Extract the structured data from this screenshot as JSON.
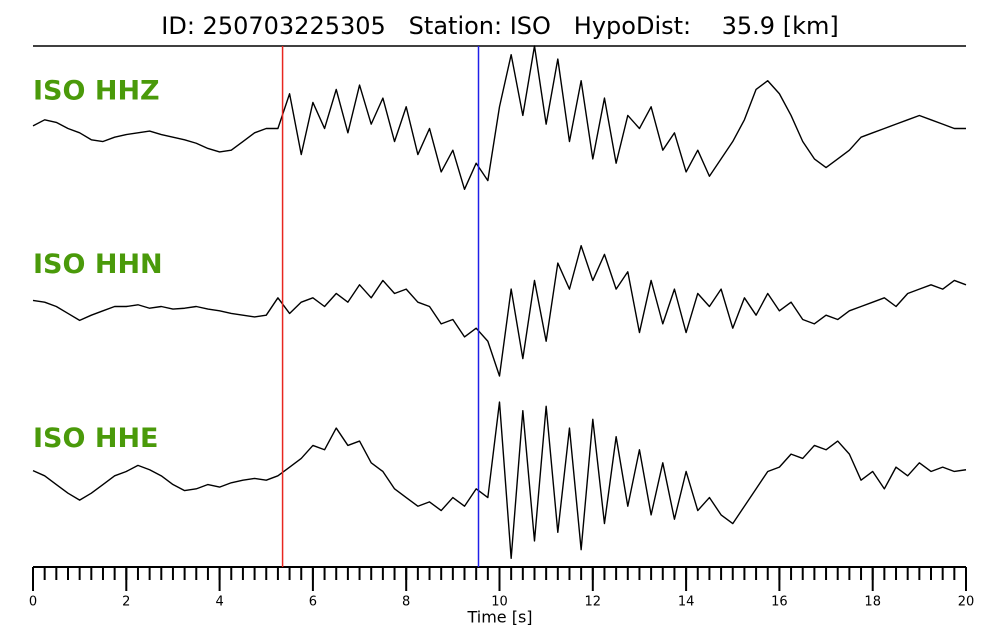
{
  "chart_data": {
    "type": "line",
    "title": "ID: 250703225305   Station: ISO   HypoDist:    35.9 [km]",
    "xlabel": "Time [s]",
    "xlim": [
      0,
      20
    ],
    "xticks": [
      0,
      2,
      4,
      6,
      8,
      10,
      12,
      14,
      16,
      18,
      20
    ],
    "minor_tick_interval": 0.25,
    "ylim": [
      -1,
      1
    ],
    "label_color": "#4a9a0a",
    "markers": [
      {
        "x": 5.35,
        "color": "#e8261f"
      },
      {
        "x": 9.55,
        "color": "#1f1fe8"
      }
    ],
    "x": [
      0,
      0.25,
      0.5,
      0.75,
      1,
      1.25,
      1.5,
      1.75,
      2,
      2.25,
      2.5,
      2.75,
      3,
      3.25,
      3.5,
      3.75,
      4,
      4.25,
      4.5,
      4.75,
      5,
      5.25,
      5.5,
      5.75,
      6,
      6.25,
      6.5,
      6.75,
      7,
      7.25,
      7.5,
      7.75,
      8,
      8.25,
      8.5,
      8.75,
      9,
      9.25,
      9.5,
      9.75,
      10,
      10.25,
      10.5,
      10.75,
      11,
      11.25,
      11.5,
      11.75,
      12,
      12.25,
      12.5,
      12.75,
      13,
      13.25,
      13.5,
      13.75,
      14,
      14.25,
      14.5,
      14.75,
      15,
      15.25,
      15.5,
      15.75,
      16,
      16.25,
      16.5,
      16.75,
      17,
      17.25,
      17.5,
      17.75,
      18,
      18.25,
      18.5,
      18.75,
      19,
      19.25,
      19.5,
      19.75,
      20
    ],
    "series": [
      {
        "name": "ISO HHZ",
        "color": "#000000",
        "values": [
          0.08,
          0.15,
          0.12,
          0.05,
          0.0,
          -0.08,
          -0.1,
          -0.05,
          -0.02,
          0.0,
          0.02,
          -0.02,
          -0.05,
          -0.08,
          -0.12,
          -0.18,
          -0.22,
          -0.2,
          -0.1,
          0.0,
          0.05,
          0.05,
          0.45,
          -0.25,
          0.35,
          0.05,
          0.5,
          0.0,
          0.55,
          0.1,
          0.4,
          -0.1,
          0.3,
          -0.25,
          0.05,
          -0.45,
          -0.2,
          -0.65,
          -0.35,
          -0.55,
          0.3,
          0.9,
          0.2,
          1.0,
          0.1,
          0.85,
          -0.1,
          0.6,
          -0.3,
          0.4,
          -0.35,
          0.2,
          0.05,
          0.3,
          -0.2,
          0.0,
          -0.45,
          -0.2,
          -0.5,
          -0.3,
          -0.1,
          0.15,
          0.5,
          0.6,
          0.45,
          0.2,
          -0.1,
          -0.3,
          -0.4,
          -0.3,
          -0.2,
          -0.05,
          0.0,
          0.05,
          0.1,
          0.15,
          0.2,
          0.15,
          0.1,
          0.05,
          0.05
        ]
      },
      {
        "name": "ISO HHN",
        "color": "#000000",
        "values": [
          0.07,
          0.05,
          0.0,
          -0.08,
          -0.16,
          -0.1,
          -0.05,
          0.0,
          0.0,
          0.02,
          -0.02,
          0.0,
          -0.03,
          -0.02,
          0.0,
          -0.03,
          -0.05,
          -0.08,
          -0.1,
          -0.12,
          -0.1,
          0.1,
          -0.08,
          0.05,
          0.1,
          0.0,
          0.15,
          0.05,
          0.25,
          0.1,
          0.3,
          0.15,
          0.2,
          0.05,
          0.0,
          -0.2,
          -0.15,
          -0.35,
          -0.25,
          -0.4,
          -0.8,
          0.2,
          -0.6,
          0.3,
          -0.4,
          0.5,
          0.2,
          0.7,
          0.3,
          0.6,
          0.2,
          0.4,
          -0.3,
          0.3,
          -0.2,
          0.2,
          -0.3,
          0.15,
          0.0,
          0.2,
          -0.25,
          0.1,
          -0.1,
          0.15,
          -0.05,
          0.05,
          -0.15,
          -0.2,
          -0.1,
          -0.15,
          -0.05,
          0.0,
          0.05,
          0.1,
          0.0,
          0.15,
          0.2,
          0.25,
          0.2,
          0.3,
          0.25
        ]
      },
      {
        "name": "ISO HHE",
        "color": "#000000",
        "values": [
          0.11,
          0.05,
          -0.05,
          -0.15,
          -0.23,
          -0.15,
          -0.05,
          0.05,
          0.1,
          0.17,
          0.12,
          0.05,
          -0.05,
          -0.12,
          -0.1,
          -0.05,
          -0.08,
          -0.03,
          0.0,
          0.02,
          0.0,
          0.05,
          0.15,
          0.25,
          0.4,
          0.35,
          0.6,
          0.4,
          0.45,
          0.2,
          0.1,
          -0.1,
          -0.2,
          -0.3,
          -0.25,
          -0.35,
          -0.2,
          -0.3,
          -0.1,
          -0.2,
          0.9,
          -0.9,
          0.8,
          -0.7,
          0.85,
          -0.6,
          0.6,
          -0.8,
          0.7,
          -0.5,
          0.5,
          -0.3,
          0.35,
          -0.4,
          0.2,
          -0.45,
          0.1,
          -0.35,
          -0.2,
          -0.4,
          -0.5,
          -0.3,
          -0.1,
          0.1,
          0.15,
          0.3,
          0.25,
          0.4,
          0.35,
          0.45,
          0.3,
          0.0,
          0.1,
          -0.1,
          0.15,
          0.05,
          0.2,
          0.1,
          0.15,
          0.1,
          0.12
        ]
      }
    ]
  }
}
